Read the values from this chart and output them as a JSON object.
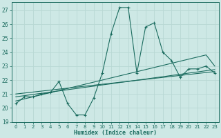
{
  "xlabel": "Humidex (Indice chaleur)",
  "bg_color": "#cde8e5",
  "grid_color": "#b8d8d4",
  "line_color": "#1a6b5e",
  "x_data": [
    0,
    1,
    2,
    3,
    4,
    5,
    6,
    7,
    8,
    9,
    10,
    11,
    12,
    13,
    14,
    15,
    16,
    17,
    18,
    19,
    20,
    21,
    22,
    23
  ],
  "main_line": [
    20.3,
    20.8,
    20.8,
    21.0,
    21.1,
    21.9,
    20.3,
    19.5,
    19.5,
    20.7,
    22.5,
    25.3,
    27.2,
    27.2,
    22.5,
    25.8,
    26.1,
    24.0,
    23.4,
    22.2,
    22.8,
    22.8,
    23.0,
    22.5
  ],
  "reg_line1": [
    20.5,
    20.65,
    20.8,
    20.95,
    21.1,
    21.25,
    21.4,
    21.55,
    21.7,
    21.85,
    22.0,
    22.15,
    22.3,
    22.45,
    22.6,
    22.75,
    22.9,
    23.05,
    23.2,
    23.35,
    23.5,
    23.65,
    23.8,
    23.0
  ],
  "reg_line2": [
    20.8,
    20.88,
    20.97,
    21.05,
    21.14,
    21.22,
    21.31,
    21.39,
    21.48,
    21.56,
    21.65,
    21.73,
    21.82,
    21.9,
    21.99,
    22.07,
    22.16,
    22.24,
    22.33,
    22.41,
    22.5,
    22.58,
    22.67,
    22.75
  ],
  "reg_line3": [
    21.0,
    21.07,
    21.14,
    21.21,
    21.28,
    21.35,
    21.42,
    21.49,
    21.56,
    21.63,
    21.7,
    21.77,
    21.84,
    21.91,
    21.98,
    22.05,
    22.12,
    22.19,
    22.26,
    22.33,
    22.4,
    22.47,
    22.54,
    22.61
  ],
  "ylim": [
    19,
    27.6
  ],
  "yticks": [
    19,
    20,
    21,
    22,
    23,
    24,
    25,
    26,
    27
  ],
  "xlim": [
    -0.5,
    23.5
  ],
  "xticks": [
    0,
    1,
    2,
    3,
    4,
    5,
    6,
    7,
    8,
    9,
    10,
    11,
    12,
    13,
    14,
    15,
    16,
    17,
    18,
    19,
    20,
    21,
    22,
    23
  ]
}
